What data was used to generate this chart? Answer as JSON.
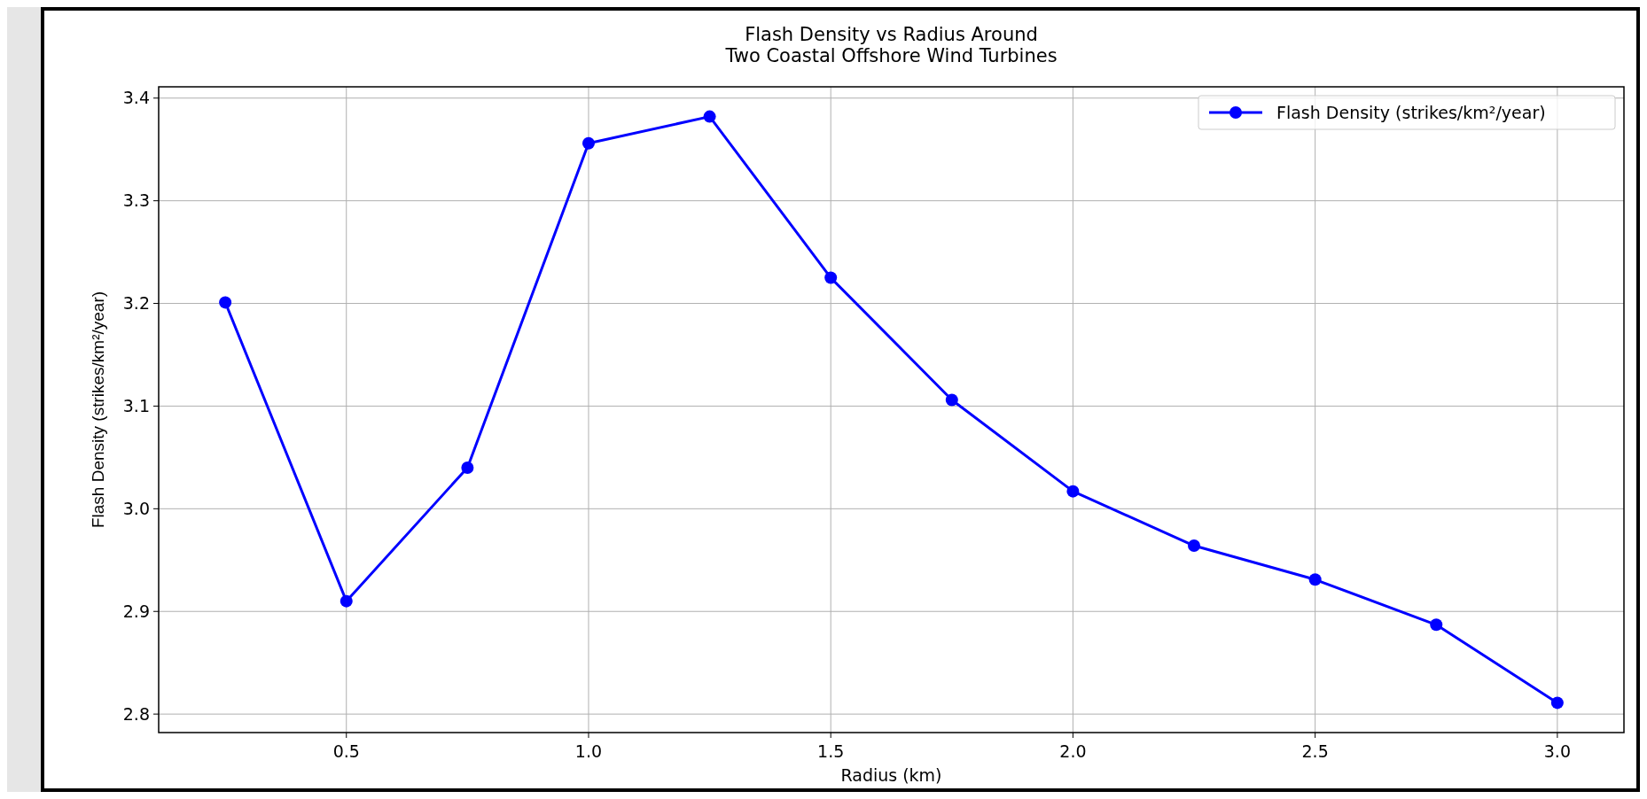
{
  "chart_data": {
    "type": "line",
    "title": "Flash Density vs Radius Around\nTwo Coastal Offshore Wind Turbines",
    "xlabel": "Radius (km)",
    "ylabel": "Flash Density (strikes/km²/year)",
    "x": [
      0.25,
      0.5,
      0.75,
      1.0,
      1.25,
      1.5,
      1.75,
      2.0,
      2.25,
      2.5,
      2.75,
      3.0
    ],
    "series": [
      {
        "name": "Flash Density (strikes/km²/year)",
        "color": "#0000ff",
        "values": [
          3.201,
          2.91,
          3.04,
          3.356,
          3.382,
          3.225,
          3.106,
          3.017,
          2.964,
          2.931,
          2.887,
          2.811
        ]
      }
    ],
    "xlim": [
      0.1125,
      3.1375
    ],
    "xticks": [
      {
        "value": 0.5,
        "label": "0.5"
      },
      {
        "value": 1.0,
        "label": "1.0"
      },
      {
        "value": 1.5,
        "label": "1.5"
      },
      {
        "value": 2.0,
        "label": "2.0"
      },
      {
        "value": 2.5,
        "label": "2.5"
      },
      {
        "value": 3.0,
        "label": "3.0"
      }
    ],
    "ylim": [
      2.782,
      3.411
    ],
    "yticks": [
      {
        "value": 2.8,
        "label": "2.8"
      },
      {
        "value": 2.9,
        "label": "2.9"
      },
      {
        "value": 3.0,
        "label": "3.0"
      },
      {
        "value": 3.1,
        "label": "3.1"
      },
      {
        "value": 3.2,
        "label": "3.2"
      },
      {
        "value": 3.3,
        "label": "3.3"
      },
      {
        "value": 3.4,
        "label": "3.4"
      }
    ],
    "grid": true,
    "legend": "top right",
    "marker": "circle",
    "line_style": "solid"
  }
}
